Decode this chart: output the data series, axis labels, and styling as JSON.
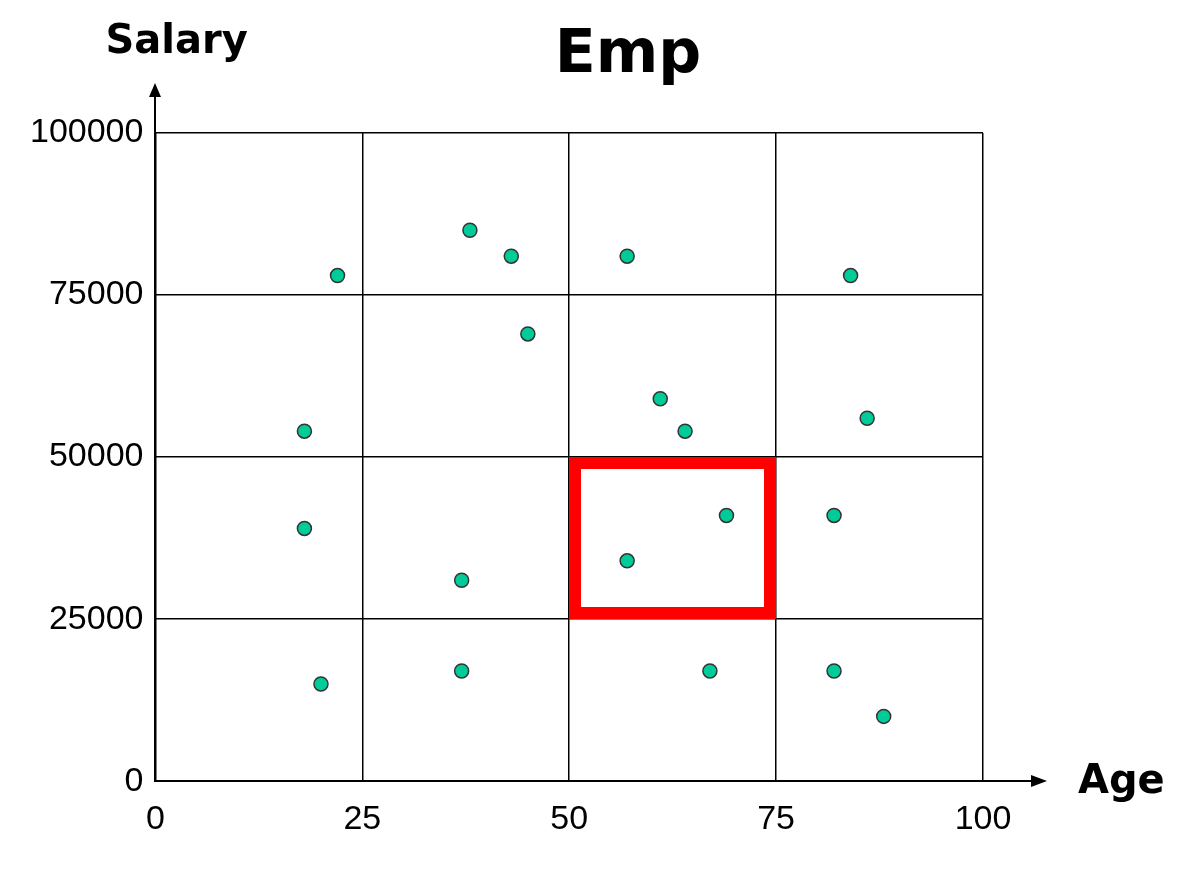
{
  "chart_data": {
    "type": "scatter",
    "title": "Emp",
    "xlabel": "Age",
    "ylabel": "Salary",
    "x": [
      22,
      38,
      43,
      45,
      57,
      84,
      18,
      61,
      64,
      86,
      18,
      37,
      57,
      69,
      82,
      20,
      37,
      67,
      82,
      88
    ],
    "values": [
      78000,
      85000,
      81000,
      69000,
      81000,
      78000,
      54000,
      59000,
      54000,
      56000,
      39000,
      31000,
      34000,
      41000,
      41000,
      15000,
      17000,
      17000,
      17000,
      10000
    ],
    "color": "#00cc99",
    "marker": "circle",
    "grid": true,
    "xlim": [
      0,
      100
    ],
    "xticks": [
      0,
      25,
      50,
      75,
      100
    ],
    "ylim": [
      0,
      100000
    ],
    "yticks": [
      0,
      25000,
      50000,
      75000,
      100000
    ]
  }
}
